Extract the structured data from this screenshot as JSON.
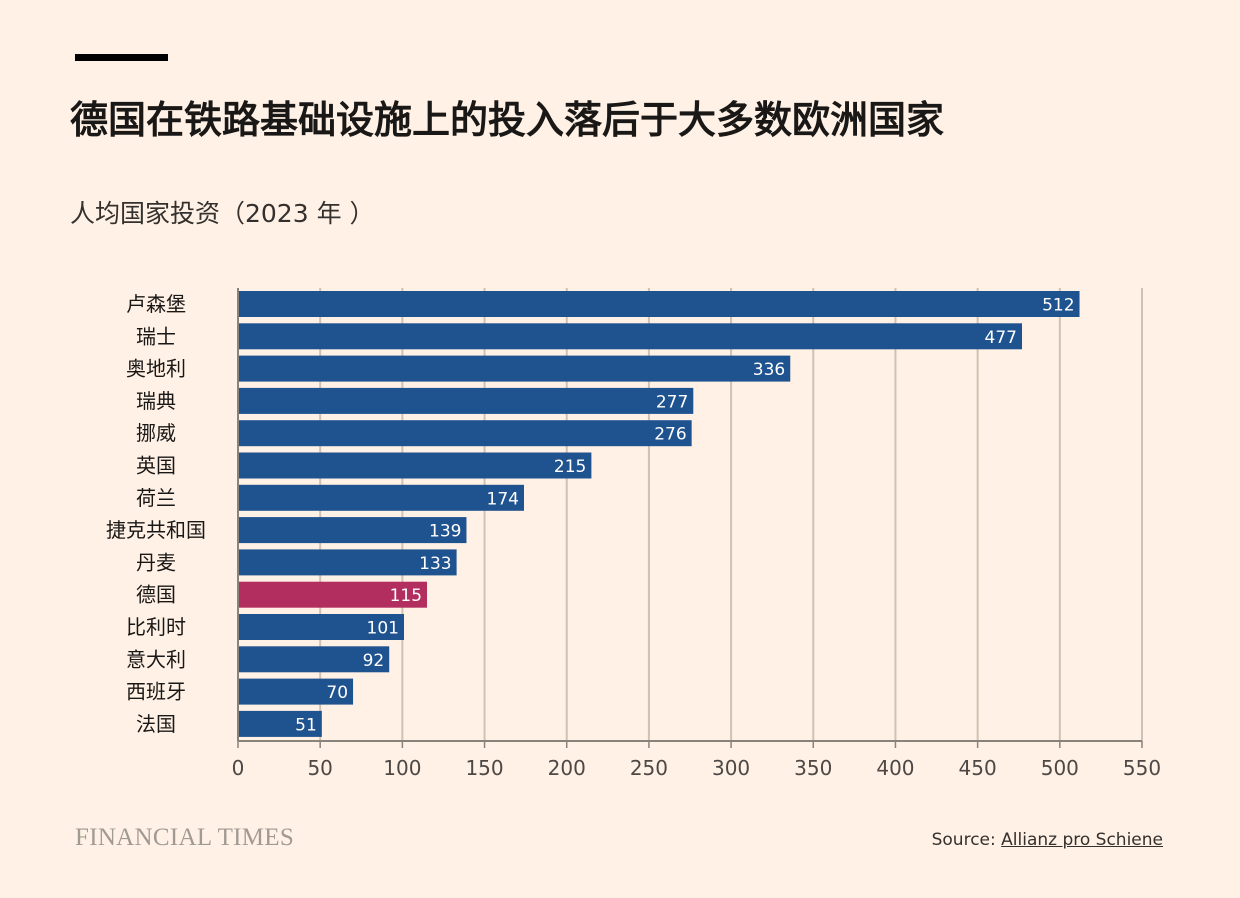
{
  "header": {
    "title": "德国在铁路基础设施上的投入落后于大多数欧洲国家",
    "subtitle": "人均国家投资（2023 年 ）"
  },
  "footer": {
    "brand": "FINANCIAL TIMES",
    "source_prefix": "Source: ",
    "source_link": "Allianz pro Schiene"
  },
  "colors": {
    "bar": "#1f5390",
    "highlight": "#b22e5f",
    "grid": "#cfc2b3",
    "background": "#fff1e5"
  },
  "chart_data": {
    "type": "bar",
    "orientation": "horizontal",
    "title": "德国在铁路基础设施上的投入落后于大多数欧洲国家",
    "subtitle": "人均国家投资（2023 年 ）",
    "xlabel": "",
    "ylabel": "",
    "categories": [
      "卢森堡",
      "瑞士",
      "奥地利",
      "瑞典",
      "挪威",
      "英国",
      "荷兰",
      "捷克共和国",
      "丹麦",
      "德国",
      "比利时",
      "意大利",
      "西班牙",
      "法国"
    ],
    "values": [
      512,
      477,
      336,
      277,
      276,
      215,
      174,
      139,
      133,
      115,
      101,
      92,
      70,
      51
    ],
    "highlight_category": "德国",
    "xlim": [
      0,
      550
    ],
    "xticks": [
      0,
      50,
      100,
      150,
      200,
      250,
      300,
      350,
      400,
      450,
      500,
      550
    ],
    "grid": true
  }
}
